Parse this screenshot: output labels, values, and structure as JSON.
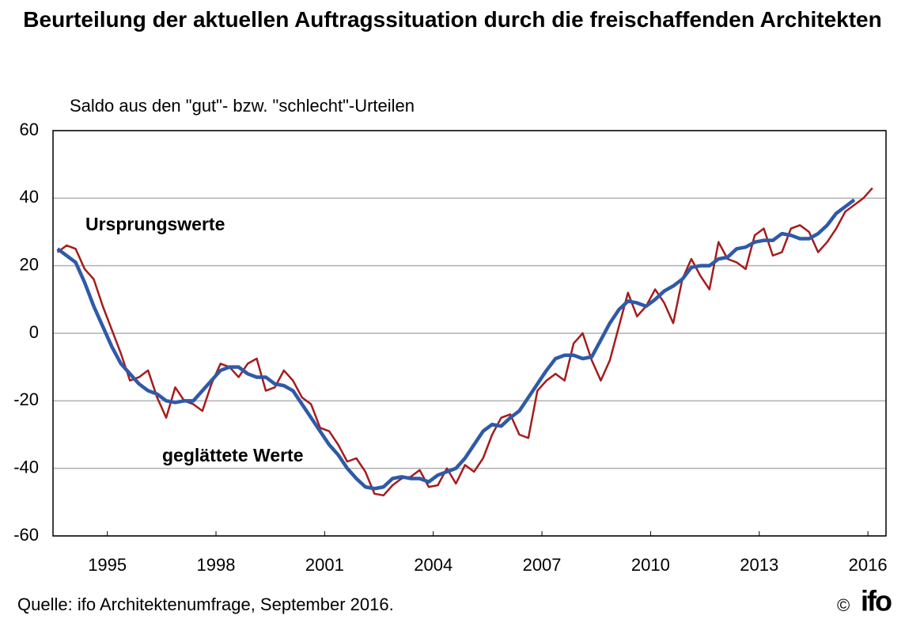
{
  "chart_data": {
    "type": "line",
    "title": "Beurteilung der aktuellen Auftragssituation durch die freischaffenden Architekten",
    "subtitle": "Saldo aus den \"gut\"- bzw. \"schlecht\"-Urteilen",
    "source": "Quelle: ifo Architektenumfrage, September 2016.",
    "copyright": "©",
    "logo": "ifo",
    "x": [
      1994.125,
      1994.375,
      1994.625,
      1994.875,
      1995.125,
      1995.375,
      1995.625,
      1995.875,
      1996.125,
      1996.375,
      1996.625,
      1996.875,
      1997.125,
      1997.375,
      1997.625,
      1997.875,
      1998.125,
      1998.375,
      1998.625,
      1998.875,
      1999.125,
      1999.375,
      1999.625,
      1999.875,
      2000.125,
      2000.375,
      2000.625,
      2000.875,
      2001.125,
      2001.375,
      2001.625,
      2001.875,
      2002.125,
      2002.375,
      2002.625,
      2002.875,
      2003.125,
      2003.375,
      2003.625,
      2003.875,
      2004.125,
      2004.375,
      2004.625,
      2004.875,
      2005.125,
      2005.375,
      2005.625,
      2005.875,
      2006.125,
      2006.375,
      2006.625,
      2006.875,
      2007.125,
      2007.375,
      2007.625,
      2007.875,
      2008.125,
      2008.375,
      2008.625,
      2008.875,
      2009.125,
      2009.375,
      2009.625,
      2009.875,
      2010.125,
      2010.375,
      2010.625,
      2010.875,
      2011.125,
      2011.375,
      2011.625,
      2011.875,
      2012.125,
      2012.375,
      2012.625,
      2012.875,
      2013.125,
      2013.375,
      2013.625,
      2013.875,
      2014.125,
      2014.375,
      2014.625,
      2014.875,
      2015.125,
      2015.375,
      2015.625,
      2015.875,
      2016.125,
      2016.375,
      2016.625
    ],
    "series": [
      {
        "name": "Ursprungswerte",
        "color": "#a51c1c",
        "values": [
          24,
          26,
          25,
          19,
          16,
          8,
          1,
          -6,
          -14,
          -13,
          -11,
          -19,
          -25,
          -16,
          -20,
          -21,
          -23,
          -15,
          -9,
          -10,
          -13,
          -9,
          -7.5,
          -17,
          -16,
          -11,
          -14,
          -19,
          -21,
          -28,
          -29,
          -33,
          -38,
          -37,
          -41,
          -47.5,
          -48,
          -45,
          -43,
          -42.5,
          -40.5,
          -45.5,
          -45,
          -40,
          -44.5,
          -39,
          -41,
          -37,
          -30,
          -25,
          -24,
          -30,
          -31,
          -17,
          -14,
          -12,
          -14,
          -3,
          0,
          -8,
          -14,
          -8,
          2,
          12,
          5,
          8,
          13,
          9,
          3,
          16,
          22,
          17,
          13,
          27,
          22,
          21,
          19,
          29,
          31,
          23,
          24,
          31,
          32,
          30,
          24,
          27,
          31,
          36,
          38,
          40,
          43
        ]
      },
      {
        "name": "geglättete Werte",
        "color": "#2e5aa8",
        "values": [
          25,
          23,
          21,
          15,
          8,
          2,
          -4,
          -9,
          -12,
          -15,
          -17,
          -18,
          -20,
          -20.5,
          -20,
          -20,
          -17,
          -14,
          -11,
          -10,
          -10,
          -12,
          -13,
          -13,
          -15,
          -15.5,
          -17,
          -21,
          -25,
          -29,
          -33,
          -36,
          -40,
          -43,
          -45.5,
          -46,
          -45.5,
          -43,
          -42.5,
          -43,
          -43,
          -44,
          -42,
          -41,
          -40,
          -37,
          -33,
          -29,
          -27,
          -27.5,
          -25,
          -23,
          -19,
          -15,
          -11,
          -7.5,
          -6.5,
          -6.5,
          -7.5,
          -7,
          -2,
          3,
          7,
          9.5,
          9,
          8,
          10,
          12.5,
          14,
          16,
          19.5,
          20,
          20,
          22,
          22.5,
          25,
          25.5,
          27,
          27.5,
          27.5,
          29.5,
          29,
          28,
          28,
          29.5,
          32,
          35.5,
          37.5,
          39.5,
          null,
          null
        ]
      }
    ],
    "xlim": [
      1994,
      2017
    ],
    "xticks": [
      {
        "value": 1995.5,
        "label": "1995"
      },
      {
        "value": 1998.5,
        "label": "1998"
      },
      {
        "value": 2001.5,
        "label": "2001"
      },
      {
        "value": 2004.5,
        "label": "2004"
      },
      {
        "value": 2007.5,
        "label": "2007"
      },
      {
        "value": 2010.5,
        "label": "2010"
      },
      {
        "value": 2013.5,
        "label": "2013"
      },
      {
        "value": 2016.5,
        "label": "2016"
      }
    ],
    "ylim": [
      -60,
      60
    ],
    "yticks": [
      -60,
      -40,
      -20,
      0,
      20,
      40,
      60
    ],
    "grid": true
  }
}
